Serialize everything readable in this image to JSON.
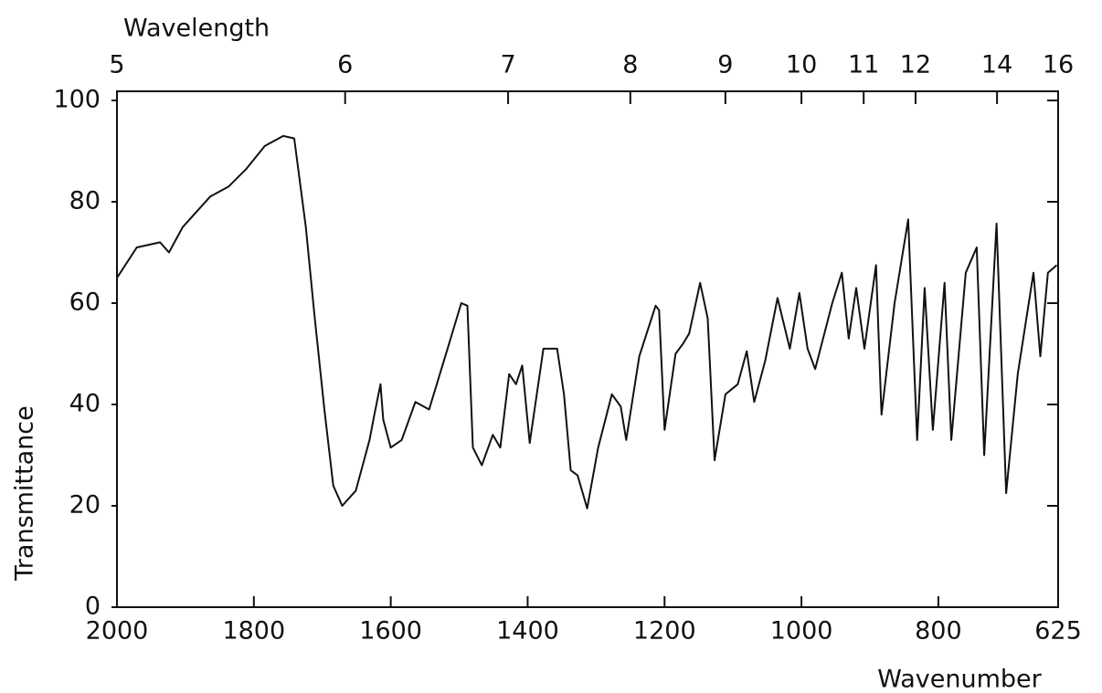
{
  "chart_data": {
    "type": "line",
    "title_top_axis": "Wavelength",
    "xlabel": "Wavenumber",
    "ylabel": "Transmittance",
    "x": [
      2000,
      1971,
      1937,
      1924,
      1904,
      1864,
      1837,
      1811,
      1784,
      1757,
      1741,
      1724,
      1711,
      1697,
      1684,
      1671,
      1651,
      1631,
      1624,
      1615,
      1611,
      1600,
      1584,
      1564,
      1544,
      1517,
      1497,
      1488,
      1480,
      1467,
      1451,
      1440,
      1427,
      1417,
      1408,
      1397,
      1377,
      1357,
      1347,
      1337,
      1327,
      1313,
      1297,
      1277,
      1264,
      1256,
      1237,
      1213,
      1208,
      1200,
      1184,
      1173,
      1164,
      1148,
      1137,
      1127,
      1111,
      1093,
      1080,
      1069,
      1053,
      1035,
      1017,
      1003,
      991,
      980,
      955,
      941,
      931,
      920,
      908,
      891,
      883,
      864,
      844,
      831,
      820,
      808,
      791,
      781,
      760,
      744,
      733,
      715,
      701,
      684,
      661,
      651,
      640,
      627
    ],
    "values": [
      65,
      71,
      72,
      70,
      75,
      81,
      83,
      86.5,
      91,
      93,
      92.5,
      75,
      57,
      39,
      24,
      20,
      23,
      33,
      38,
      44,
      37,
      31.5,
      33,
      40.5,
      39,
      51,
      60,
      59.5,
      31.5,
      28,
      34,
      31.5,
      46,
      44,
      47.7,
      32.4,
      51,
      51,
      42,
      27,
      26,
      19.5,
      31.5,
      42,
      39.6,
      33,
      49.5,
      59.5,
      58.6,
      35,
      50,
      52,
      54,
      64,
      57,
      29,
      42,
      44,
      50.5,
      40.5,
      48.6,
      61,
      51,
      62,
      51,
      47,
      60,
      66,
      53,
      63,
      51,
      67.5,
      38,
      60,
      76.5,
      33,
      63,
      35,
      64,
      33,
      66,
      71,
      30,
      75.7,
      22.5,
      46,
      66,
      49.5,
      66,
      67.5
    ],
    "color": "#111111",
    "xlim": [
      2000,
      625
    ],
    "xticks": [
      2000,
      1800,
      1600,
      1400,
      1200,
      1000,
      800,
      625
    ],
    "ylim": [
      0,
      100
    ],
    "yticks": [
      0,
      20,
      40,
      60,
      80,
      100
    ],
    "x2scale": "reciprocal",
    "x2ticks": [
      5,
      6,
      7,
      8,
      9,
      10,
      11,
      12,
      14,
      16
    ]
  }
}
